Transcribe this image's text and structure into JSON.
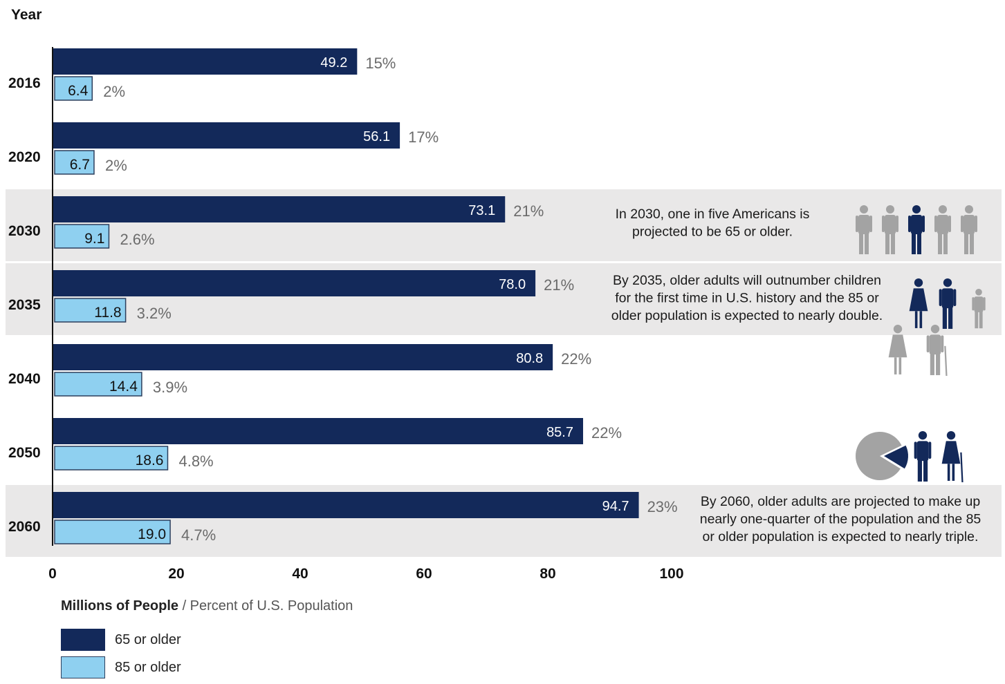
{
  "colors": {
    "dark": "#13295a",
    "light": "#8fd0f0",
    "light_border": "#2c3e5c",
    "band": "#e9e8e8",
    "pct_text": "#6b6b6b",
    "icon_gray": "#a3a3a3"
  },
  "chart_data": {
    "type": "bar",
    "orientation": "horizontal",
    "y_axis_title": "Year",
    "categories": [
      "2016",
      "2020",
      "2030",
      "2035",
      "2040",
      "2050",
      "2060"
    ],
    "series": [
      {
        "name": "65 or older",
        "values": [
          49.2,
          56.1,
          73.1,
          78.0,
          80.8,
          85.7,
          94.7
        ],
        "value_labels": [
          "49.2",
          "56.1",
          "73.1",
          "78.0",
          "80.8",
          "85.7",
          "94.7"
        ],
        "percent_labels": [
          "15%",
          "17%",
          "21%",
          "21%",
          "22%",
          "22%",
          "23%"
        ]
      },
      {
        "name": "85 or older",
        "values": [
          6.4,
          6.7,
          9.1,
          11.8,
          14.4,
          18.6,
          19.0
        ],
        "value_labels": [
          "6.4",
          "6.7",
          "9.1",
          "11.8",
          "14.4",
          "18.6",
          "19.0"
        ],
        "percent_labels": [
          "2%",
          "2%",
          "2.6%",
          "3.2%",
          "3.9%",
          "4.8%",
          "4.7%"
        ]
      }
    ],
    "xlim": [
      0,
      100
    ],
    "xticks": [
      "0",
      "20",
      "40",
      "60",
      "80",
      "100"
    ],
    "highlighted_years": [
      "2030",
      "2035",
      "2060"
    ],
    "annotations": [
      {
        "year": "2030",
        "lines": [
          "In 2030, one in five Americans is",
          "projected to be 65 or older."
        ]
      },
      {
        "year": "2035",
        "lines": [
          "By 2035, older adults will outnumber children",
          "for the first time in U.S. history and the 85 or",
          "older population is expected to nearly double."
        ]
      },
      {
        "year": "2060",
        "lines": [
          "By 2060, older adults are projected to make up",
          "nearly one-quarter of the population and the 85",
          "or older population is expected to nearly triple."
        ]
      }
    ],
    "legend_placement": "bottom-left",
    "grid": false
  },
  "legend": {
    "title_bold": "Millions of People",
    "title_rest": " / Percent of U.S. Population",
    "items": [
      {
        "label": "65 or older"
      },
      {
        "label": "85 or older"
      }
    ]
  },
  "icons": [
    "person-group-icon",
    "adults-and-elderly-icon",
    "pie-and-couple-icon"
  ]
}
